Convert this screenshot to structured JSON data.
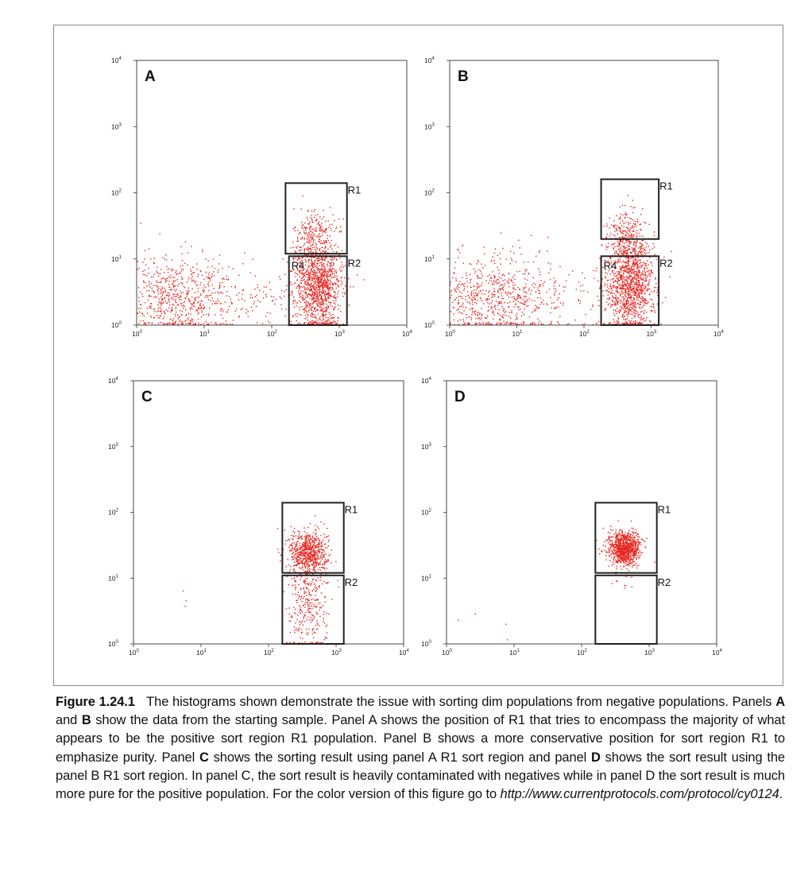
{
  "figure": {
    "caption": {
      "label": "Figure 1.24.1",
      "p1": "The histograms shown demonstrate the issue with sorting dim populations from negative populations. Panels ",
      "b1": "A",
      "p2": " and ",
      "b2": "B",
      "p3": " show the data from the starting sample. Panel A shows the position of R1 that tries to encompass the majority of what appears to be the positive sort region R1 population. Panel B shows a more conservative position for sort region R1 to emphasize purity. Panel ",
      "b3": "C",
      "p4": " shows the sorting result using panel A R1 sort region and panel ",
      "b4": "D",
      "p5": " shows the sort result using the panel B R1 sort region. In panel C, the sort result is heavily contaminated with negatives while in panel D the sort result is much more pure for the positive population. For the color version of this figure go to ",
      "url": "http://www.currentprotocols.com/protocol/cy0124",
      "end": "."
    }
  },
  "chart_data": [
    {
      "type": "scatter",
      "panel": "A",
      "x_scale": "log",
      "y_scale": "log",
      "xlim": [
        1,
        10000
      ],
      "ylim": [
        1,
        10000
      ],
      "x_ticks": [
        "10^0",
        "10^1",
        "10^2",
        "10^3",
        "10^4"
      ],
      "y_ticks": [
        "10^0",
        "10^1",
        "10^2",
        "10^3",
        "10^4"
      ],
      "point_color": "#e8231c",
      "regions": [
        {
          "name": "R1",
          "x": [
            160,
            1300
          ],
          "y": [
            12,
            140
          ]
        },
        {
          "name": "R2",
          "x": [
            180,
            1300
          ],
          "y": [
            1,
            11
          ]
        },
        {
          "name": "R4",
          "x": [
            180,
            1300
          ],
          "y": [
            1,
            11
          ]
        }
      ],
      "populations": [
        {
          "center_x": 3.5,
          "center_y": 2.6,
          "spread_x": 0.5,
          "spread_y": 0.32,
          "count": 680
        },
        {
          "center_x": 480,
          "center_y": 4,
          "spread_x": 0.18,
          "spread_y": 0.35,
          "count": 1150
        },
        {
          "center_x": 420,
          "center_y": 22,
          "spread_x": 0.15,
          "spread_y": 0.22,
          "count": 220
        },
        {
          "center_x": 40,
          "center_y": 2.5,
          "spread_x": 0.6,
          "spread_y": 0.3,
          "count": 110
        }
      ]
    },
    {
      "type": "scatter",
      "panel": "B",
      "x_scale": "log",
      "y_scale": "log",
      "xlim": [
        1,
        10000
      ],
      "ylim": [
        1,
        10000
      ],
      "x_ticks": [
        "10^0",
        "10^1",
        "10^2",
        "10^3",
        "10^4"
      ],
      "y_ticks": [
        "10^0",
        "10^1",
        "10^2",
        "10^3",
        "10^4"
      ],
      "point_color": "#e8231c",
      "regions": [
        {
          "name": "R1",
          "x": [
            180,
            1300
          ],
          "y": [
            20,
            160
          ]
        },
        {
          "name": "R2",
          "x": [
            180,
            1300
          ],
          "y": [
            1,
            11
          ]
        },
        {
          "name": "R4",
          "x": [
            180,
            1300
          ],
          "y": [
            1,
            11
          ]
        }
      ],
      "populations": [
        {
          "center_x": 3.5,
          "center_y": 2.6,
          "spread_x": 0.5,
          "spread_y": 0.32,
          "count": 680
        },
        {
          "center_x": 480,
          "center_y": 4,
          "spread_x": 0.18,
          "spread_y": 0.35,
          "count": 1150
        },
        {
          "center_x": 420,
          "center_y": 22,
          "spread_x": 0.15,
          "spread_y": 0.22,
          "count": 220
        },
        {
          "center_x": 40,
          "center_y": 2.5,
          "spread_x": 0.6,
          "spread_y": 0.3,
          "count": 110
        }
      ]
    },
    {
      "type": "scatter",
      "panel": "C",
      "x_scale": "log",
      "y_scale": "log",
      "xlim": [
        1,
        10000
      ],
      "ylim": [
        1,
        10000
      ],
      "x_ticks": [
        "10^0",
        "10^1",
        "10^2",
        "10^3",
        "10^4"
      ],
      "y_ticks": [
        "10^0",
        "10^1",
        "10^2",
        "10^3",
        "10^4"
      ],
      "point_color": "#e8231c",
      "regions": [
        {
          "name": "R1",
          "x": [
            160,
            1300
          ],
          "y": [
            12,
            140
          ]
        },
        {
          "name": "R2",
          "x": [
            160,
            1300
          ],
          "y": [
            1,
            11
          ]
        }
      ],
      "populations": [
        {
          "center_x": 380,
          "center_y": 24,
          "spread_x": 0.14,
          "spread_y": 0.17,
          "count": 650
        },
        {
          "center_x": 380,
          "center_y": 4,
          "spread_x": 0.15,
          "spread_y": 0.35,
          "count": 300
        },
        {
          "center_x": 4,
          "center_y": 4,
          "spread_x": 0.3,
          "spread_y": 0.2,
          "count": 3
        }
      ]
    },
    {
      "type": "scatter",
      "panel": "D",
      "x_scale": "log",
      "y_scale": "log",
      "xlim": [
        1,
        10000
      ],
      "ylim": [
        1,
        10000
      ],
      "x_ticks": [
        "10^0",
        "10^1",
        "10^2",
        "10^3",
        "10^4"
      ],
      "y_ticks": [
        "10^0",
        "10^1",
        "10^2",
        "10^3",
        "10^4"
      ],
      "point_color": "#e8231c",
      "regions": [
        {
          "name": "R1",
          "x": [
            160,
            1300
          ],
          "y": [
            12,
            140
          ]
        },
        {
          "name": "R2",
          "x": [
            160,
            1300
          ],
          "y": [
            1,
            11
          ]
        }
      ],
      "populations": [
        {
          "center_x": 420,
          "center_y": 28,
          "spread_x": 0.12,
          "spread_y": 0.13,
          "count": 900
        },
        {
          "center_x": 420,
          "center_y": 9,
          "spread_x": 0.12,
          "spread_y": 0.1,
          "count": 12
        },
        {
          "center_x": 2.5,
          "center_y": 3,
          "spread_x": 0.3,
          "spread_y": 0.25,
          "count": 4
        }
      ]
    }
  ]
}
